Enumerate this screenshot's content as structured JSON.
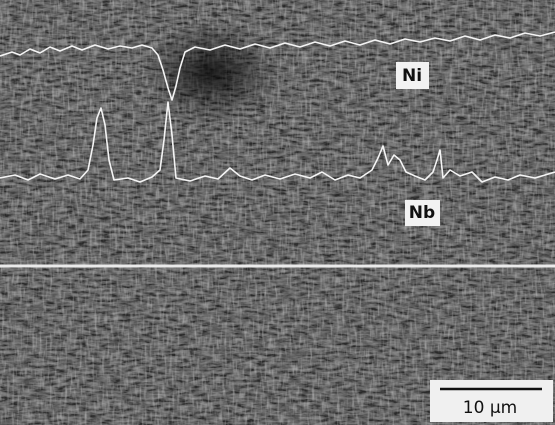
{
  "labels": {
    "ni": "Ni",
    "nb": "Nb"
  },
  "scale_bar": {
    "label": "10 µm"
  }
}
